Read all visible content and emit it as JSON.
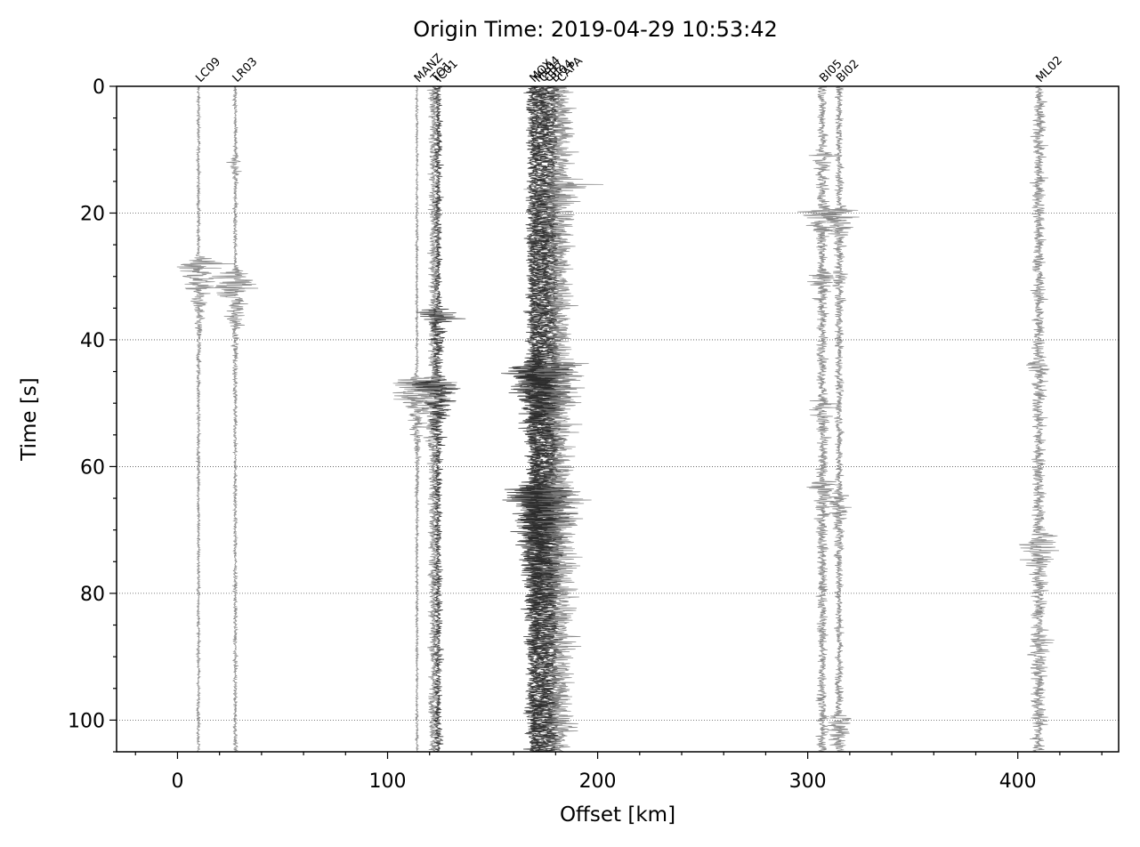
{
  "chart_data": {
    "type": "scatter",
    "title": "Origin Time: 2019-04-29 10:53:42",
    "xlabel": "Offset [km]",
    "ylabel": "Time [s]",
    "xlim": [
      -29,
      448
    ],
    "ylim": [
      105,
      0
    ],
    "y_inverted": true,
    "grid": "horizontal dotted",
    "x_ticks": [
      0,
      100,
      200,
      300,
      400
    ],
    "y_ticks": [
      0,
      20,
      40,
      60,
      80,
      100
    ],
    "trace_colors": {
      "light": "#7f7f7f",
      "dark": "#2b2b2b"
    },
    "stations": [
      {
        "name": "LC09",
        "offset": 10,
        "shade": "light",
        "base_amp": 0.5,
        "bursts": [
          {
            "t": 28,
            "amp": 9,
            "w": 4
          }
        ]
      },
      {
        "name": "LR03",
        "offset": 27.5,
        "shade": "light",
        "base_amp": 0.6,
        "bursts": [
          {
            "t": 30,
            "amp": 10,
            "w": 4
          },
          {
            "t": 12,
            "amp": 1.5,
            "w": 2
          }
        ]
      },
      {
        "name": "MANZ",
        "offset": 114,
        "shade": "light",
        "base_amp": 0.4,
        "bursts": [
          {
            "t": 47,
            "amp": 10,
            "w": 4
          }
        ]
      },
      {
        "name": "TO1",
        "offset": 122,
        "shade": "light",
        "base_amp": 1.5,
        "bursts": [
          {
            "t": 47,
            "amp": 8,
            "w": 4
          }
        ]
      },
      {
        "name": "IC01",
        "offset": 124,
        "shade": "dark",
        "base_amp": 1.2,
        "bursts": [
          {
            "t": 36,
            "amp": 6,
            "w": 3
          },
          {
            "t": 47,
            "amp": 7,
            "w": 4
          }
        ]
      },
      {
        "name": "MOX",
        "offset": 169,
        "shade": "dark",
        "base_amp": 2,
        "bursts": [
          {
            "t": 45,
            "amp": 7,
            "w": 6
          },
          {
            "t": 64,
            "amp": 7,
            "w": 8
          }
        ]
      },
      {
        "name": "ML04",
        "offset": 171,
        "shade": "dark",
        "base_amp": 2,
        "bursts": [
          {
            "t": 45,
            "amp": 6,
            "w": 6
          },
          {
            "t": 64,
            "amp": 6,
            "w": 8
          }
        ]
      },
      {
        "name": "CP1",
        "offset": 173.5,
        "shade": "dark",
        "base_amp": 2.5,
        "bursts": [
          {
            "t": 45,
            "amp": 6,
            "w": 6
          },
          {
            "t": 65,
            "amp": 6,
            "w": 8
          }
        ]
      },
      {
        "name": "CP2",
        "offset": 176,
        "shade": "dark",
        "base_amp": 2.5,
        "bursts": [
          {
            "t": 44,
            "amp": 6,
            "w": 6
          },
          {
            "t": 64,
            "amp": 6,
            "w": 8
          }
        ]
      },
      {
        "name": "BI04",
        "offset": 179,
        "shade": "dark",
        "base_amp": 2,
        "bursts": [
          {
            "t": 45,
            "amp": 6,
            "w": 6
          },
          {
            "t": 64,
            "amp": 6,
            "w": 8
          }
        ]
      },
      {
        "name": "CAPA",
        "offset": 182,
        "shade": "light",
        "base_amp": 4,
        "bursts": [
          {
            "t": 15,
            "amp": 6,
            "w": 3
          },
          {
            "t": 44,
            "amp": 5,
            "w": 6
          },
          {
            "t": 64,
            "amp": 5,
            "w": 8
          }
        ]
      },
      {
        "name": "BI05",
        "offset": 307,
        "shade": "light",
        "base_amp": 1.5,
        "bursts": [
          {
            "t": 11,
            "amp": 4,
            "w": 2
          },
          {
            "t": 20,
            "amp": 6,
            "w": 2
          },
          {
            "t": 30,
            "amp": 4,
            "w": 2
          },
          {
            "t": 50,
            "amp": 3,
            "w": 3
          },
          {
            "t": 63,
            "amp": 3,
            "w": 3
          }
        ]
      },
      {
        "name": "BI02",
        "offset": 315,
        "shade": "light",
        "base_amp": 1.2,
        "bursts": [
          {
            "t": 20,
            "amp": 7,
            "w": 2
          },
          {
            "t": 30,
            "amp": 2,
            "w": 2
          },
          {
            "t": 65,
            "amp": 3,
            "w": 3
          },
          {
            "t": 100,
            "amp": 4,
            "w": 3
          }
        ]
      },
      {
        "name": "ML02",
        "offset": 410,
        "shade": "light",
        "base_amp": 2,
        "bursts": [
          {
            "t": 71,
            "amp": 6,
            "w": 3
          },
          {
            "t": 44,
            "amp": 2,
            "w": 2
          },
          {
            "t": 88,
            "amp": 2,
            "w": 3
          }
        ]
      }
    ]
  }
}
